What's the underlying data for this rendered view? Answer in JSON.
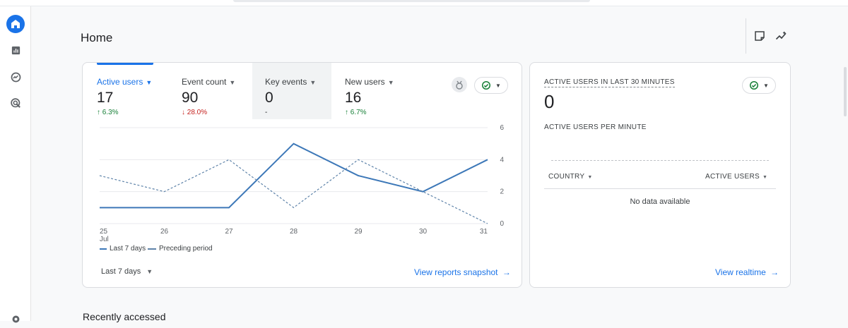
{
  "page": {
    "title": "Home"
  },
  "tabs": [
    {
      "label": "Active users",
      "value": "17",
      "change": "↑ 6.3%"
    },
    {
      "label": "Event count",
      "value": "90",
      "change": "↓ 28.0%"
    },
    {
      "label": "Key events",
      "value": "0",
      "change": "-"
    },
    {
      "label": "New users",
      "value": "16",
      "change": "↑ 6.7%"
    }
  ],
  "chart": {
    "legend_current": "Last 7 days",
    "legend_previous": "Preceding period",
    "range_selector": "Last 7 days",
    "view_link": "View reports snapshot"
  },
  "chart_data": {
    "type": "line",
    "title": "",
    "x": [
      "25",
      "26",
      "27",
      "28",
      "29",
      "30",
      "31"
    ],
    "x_month_label": "Jul",
    "ylim": [
      0,
      6
    ],
    "yticks": [
      "0",
      "2",
      "4",
      "6"
    ],
    "series": [
      {
        "name": "Last 7 days",
        "values": [
          1,
          1,
          1,
          5,
          3,
          2,
          4
        ],
        "color": "#3d78b8",
        "style": "solid"
      },
      {
        "name": "Preceding period",
        "values": [
          3,
          2,
          4,
          1,
          4,
          2,
          0
        ],
        "color": "#5e83a9",
        "style": "dashed"
      }
    ]
  },
  "realtime": {
    "title": "ACTIVE USERS IN LAST 30 MINUTES",
    "value": "0",
    "subtitle": "ACTIVE USERS PER MINUTE",
    "col_country": "COUNTRY",
    "col_active_users": "ACTIVE USERS",
    "empty_text": "No data available",
    "view_link": "View realtime"
  },
  "recent": {
    "title": "Recently accessed"
  },
  "colors": {
    "accent": "#1a73e8",
    "up": "#188038",
    "down": "#c5221f"
  }
}
